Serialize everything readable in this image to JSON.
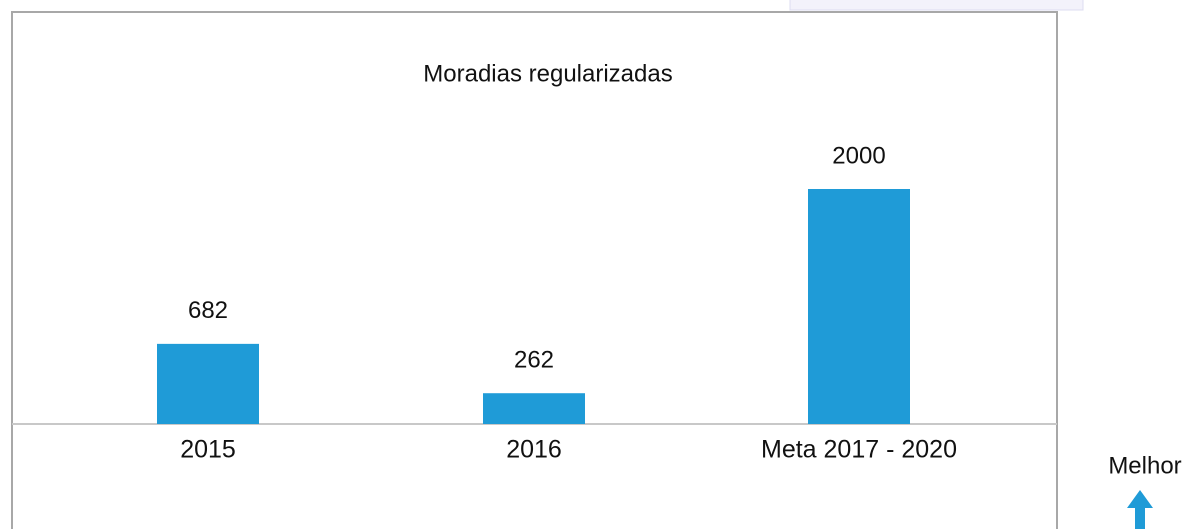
{
  "chart_data": {
    "type": "bar",
    "title": "Moradias regularizadas",
    "categories": [
      "2015",
      "2016",
      "Meta 2017 - 2020"
    ],
    "values": [
      682,
      262,
      2000
    ],
    "color": "#1f9bd7",
    "annotation": "Melhor"
  }
}
